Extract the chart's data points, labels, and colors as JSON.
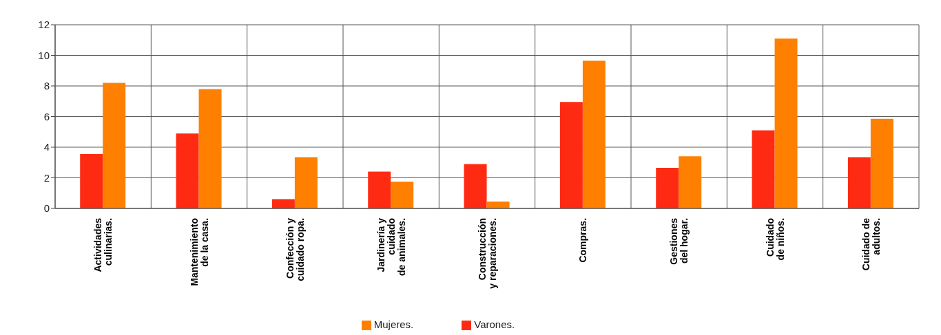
{
  "chart_data": {
    "type": "bar",
    "categories": [
      "Actividades\nculinarias.",
      "Mantenimiento\nde la casa.",
      "Confección y\ncuidado ropa.",
      "Jardinería y\ncuidado\nde animales.",
      "Construcción\ny reparaciones.",
      "Compras.",
      "Gestiones\ndel hogar.",
      "Cuidado\nde niños.",
      "Cuidado de\nadultos."
    ],
    "series": [
      {
        "name": "Varones.",
        "color": "#ff2a12",
        "values": [
          3.55,
          4.9,
          0.6,
          2.4,
          2.9,
          6.95,
          2.65,
          5.1,
          3.35
        ]
      },
      {
        "name": "Mujeres.",
        "color": "#ff7f00",
        "values": [
          8.2,
          7.8,
          3.35,
          1.75,
          0.45,
          9.65,
          3.4,
          11.1,
          5.85
        ]
      }
    ],
    "ylim": [
      0,
      12
    ],
    "yticks": [
      0,
      2,
      4,
      6,
      8,
      10,
      12
    ],
    "grid": true,
    "legend": "bottom"
  }
}
